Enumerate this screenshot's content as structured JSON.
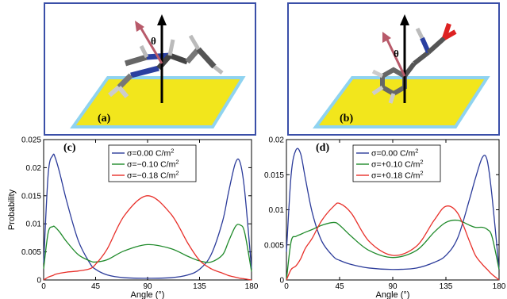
{
  "illustrations": [
    {
      "label": "(a)",
      "theta_symbol": "θ"
    },
    {
      "label": "(b)",
      "theta_symbol": "θ"
    }
  ],
  "colors": {
    "blue": "#2b3b9a",
    "green": "#1f8a2a",
    "red": "#e8302a",
    "panel_border": "#3a4fa8",
    "surface": "#f2e61c",
    "surface_glow": "#8fd3f0"
  },
  "chart_data": [
    {
      "type": "line",
      "panel_label": "(c)",
      "xlabel": "Angle (°)",
      "ylabel": "Probability",
      "xlim": [
        0,
        180
      ],
      "ylim": [
        0,
        0.025
      ],
      "xticks": [
        "0",
        "45",
        "90",
        "135",
        "180"
      ],
      "yticks": [
        "0",
        "0.005",
        "0.01",
        "0.015",
        "0.02",
        "0.025"
      ],
      "legend_position": "top-center",
      "x": [
        0,
        4,
        8,
        10,
        14,
        20,
        30,
        40,
        45,
        55,
        70,
        90,
        110,
        125,
        135,
        145,
        155,
        160,
        166,
        170,
        174,
        180
      ],
      "series": [
        {
          "name": "σ=0.00 C/m",
          "sup": "2",
          "color": "#2b3b9a",
          "values": [
            0.003,
            0.019,
            0.0222,
            0.0218,
            0.019,
            0.014,
            0.007,
            0.003,
            0.0019,
            0.0009,
            0.0004,
            0.0003,
            0.0004,
            0.0009,
            0.0019,
            0.0045,
            0.0105,
            0.0155,
            0.0208,
            0.021,
            0.016,
            0.002
          ]
        },
        {
          "name": "σ=−0.10 C/m",
          "sup": "2",
          "color": "#1f8a2a",
          "values": [
            0.002,
            0.0085,
            0.0095,
            0.0094,
            0.0085,
            0.0068,
            0.0045,
            0.0034,
            0.0032,
            0.0036,
            0.0052,
            0.0063,
            0.0056,
            0.0042,
            0.0034,
            0.0032,
            0.0045,
            0.0068,
            0.0095,
            0.0098,
            0.0085,
            0.0015
          ]
        },
        {
          "name": "σ=−0.18 C/m",
          "sup": "2",
          "color": "#e8302a",
          "values": [
            0.0,
            0.0005,
            0.0008,
            0.001,
            0.0012,
            0.0014,
            0.0016,
            0.002,
            0.0028,
            0.0055,
            0.0115,
            0.015,
            0.0118,
            0.0065,
            0.0035,
            0.002,
            0.0012,
            0.0008,
            0.0005,
            0.0003,
            0.0002,
            0.0
          ]
        }
      ]
    },
    {
      "type": "line",
      "panel_label": "(d)",
      "xlabel": "Angle (°)",
      "ylabel": "",
      "xlim": [
        0,
        180
      ],
      "ylim": [
        0,
        0.02
      ],
      "xticks": [
        "0",
        "45",
        "90",
        "135",
        "180"
      ],
      "yticks": [
        "0",
        "0.005",
        "0.01",
        "0.015",
        "0.02"
      ],
      "legend_position": "top-center",
      "x": [
        0,
        4,
        8,
        12,
        16,
        22,
        30,
        40,
        45,
        55,
        70,
        90,
        110,
        125,
        135,
        145,
        155,
        160,
        166,
        170,
        174,
        180
      ],
      "series": [
        {
          "name": "σ=0.00 C/m",
          "sup": "2",
          "color": "#2b3b9a",
          "values": [
            0.004,
            0.015,
            0.0185,
            0.018,
            0.0145,
            0.0095,
            0.0055,
            0.0033,
            0.0028,
            0.0022,
            0.0017,
            0.0015,
            0.0017,
            0.0025,
            0.0035,
            0.006,
            0.0115,
            0.0145,
            0.0175,
            0.017,
            0.012,
            0.0015
          ]
        },
        {
          "name": "σ=+0.10 C/m",
          "sup": "2",
          "color": "#1f8a2a",
          "values": [
            0.0,
            0.0055,
            0.0062,
            0.0065,
            0.0068,
            0.0072,
            0.0078,
            0.0082,
            0.0078,
            0.0062,
            0.0042,
            0.0032,
            0.0042,
            0.0068,
            0.0082,
            0.0085,
            0.0078,
            0.0075,
            0.0075,
            0.0072,
            0.0062,
            0.0015
          ]
        },
        {
          "name": "σ=+0.18 C/m",
          "sup": "2",
          "color": "#e8302a",
          "values": [
            0.0,
            0.0015,
            0.002,
            0.003,
            0.0045,
            0.006,
            0.0085,
            0.0105,
            0.0109,
            0.0095,
            0.0055,
            0.0035,
            0.0048,
            0.0085,
            0.0105,
            0.0095,
            0.0055,
            0.0035,
            0.0022,
            0.0015,
            0.0008,
            0.0
          ]
        }
      ]
    }
  ]
}
